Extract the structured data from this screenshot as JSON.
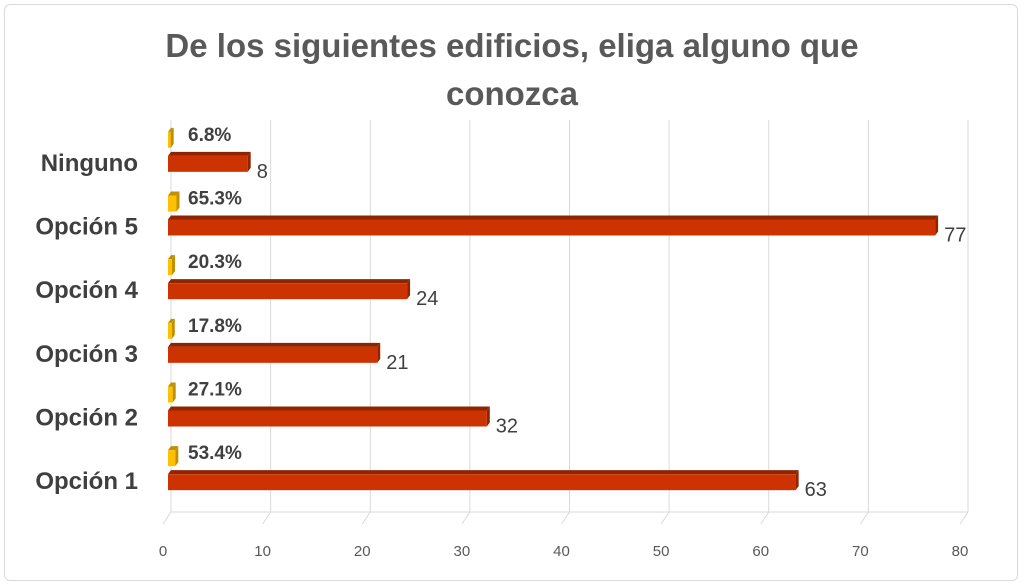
{
  "chart_data": {
    "type": "bar",
    "orientation": "horizontal",
    "title_lines": [
      "De los siguientes edificios, eliga alguno que",
      "conozca"
    ],
    "categories": [
      "Opción 1",
      "Opción 2",
      "Opción 3",
      "Opción 4",
      "Opción 5",
      "Ninguno"
    ],
    "series": [
      {
        "values": [
          0.534,
          0.271,
          0.178,
          0.203,
          0.653,
          0.068
        ],
        "labels": [
          "53.4%",
          "27.1%",
          "17.8%",
          "20.3%",
          "65.3%",
          "6.8%"
        ],
        "color": "#ffc000"
      },
      {
        "values": [
          63,
          32,
          21,
          24,
          77,
          8
        ],
        "labels": [
          "63",
          "32",
          "21",
          "24",
          "77",
          "8"
        ],
        "color": "#cc3300"
      }
    ],
    "xlim": [
      0,
      80
    ],
    "xticks": [
      "0",
      "10",
      "20",
      "30",
      "40",
      "50",
      "60",
      "70",
      "80"
    ],
    "grid": true,
    "legend": "none",
    "style": "3d"
  }
}
